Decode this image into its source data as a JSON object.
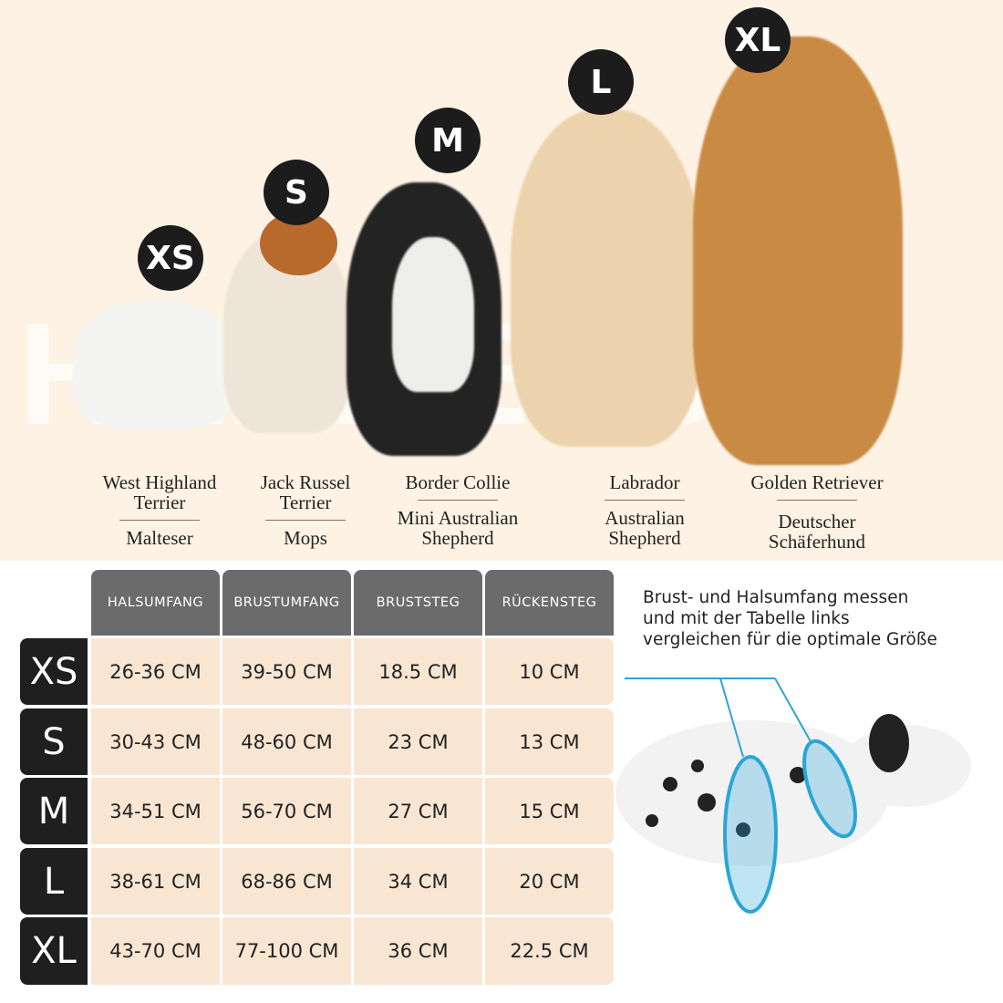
{
  "watermark": "HARNESS",
  "dogs": [
    {
      "size": "XS",
      "breed": "West Highland Terrier",
      "alt": "Malteser"
    },
    {
      "size": "S",
      "breed": "Jack Russel Terrier",
      "alt": "Mops"
    },
    {
      "size": "M",
      "breed": "Border Collie",
      "alt": "Mini Australian Shepherd"
    },
    {
      "size": "L",
      "breed": "Labrador",
      "alt": "Australian Shepherd"
    },
    {
      "size": "XL",
      "breed": "Golden Retriever",
      "alt": "Deutscher Schäferhund"
    }
  ],
  "table": {
    "headers": [
      "HALSUMFANG",
      "BRUSTUMFANG",
      "BRUSTSTEG",
      "RÜCKENSTEG"
    ],
    "rows": [
      {
        "size": "XS",
        "values": [
          "26-36 CM",
          "39-50 CM",
          "18.5 CM",
          "10 CM"
        ]
      },
      {
        "size": "S",
        "values": [
          "30-43 CM",
          "48-60 CM",
          "23 CM",
          "13 CM"
        ]
      },
      {
        "size": "M",
        "values": [
          "34-51 CM",
          "56-70 CM",
          "27 CM",
          "15 CM"
        ]
      },
      {
        "size": "L",
        "values": [
          "38-61 CM",
          "68-86 CM",
          "34 CM",
          "20 CM"
        ]
      },
      {
        "size": "XL",
        "values": [
          "43-70 CM",
          "77-100 CM",
          "36 CM",
          "22.5 CM"
        ]
      }
    ]
  },
  "note": [
    "Brust- und Halsumfang messen",
    "und mit der Tabelle links",
    "vergleichen für die optimale Größe"
  ],
  "colors": {
    "background": "#fdf2e3",
    "header": "#6b6b6b",
    "cell": "#f9e6d2",
    "size_label": "#1f1f1f",
    "measure_line": "#2aa6d6"
  }
}
